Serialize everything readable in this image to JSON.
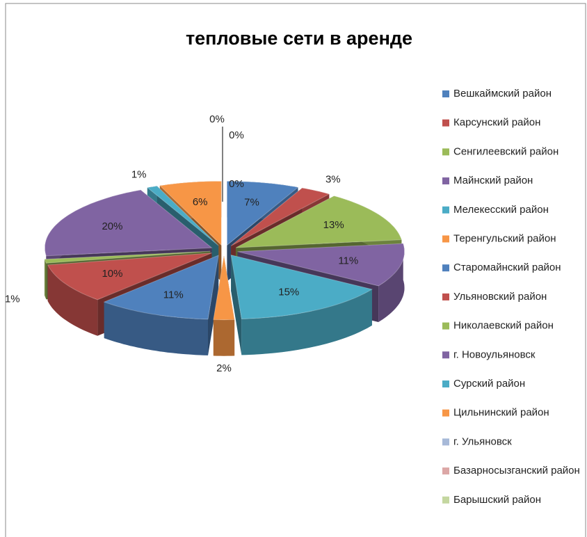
{
  "chart_data": {
    "type": "pie",
    "title": "тепловые сети в аренде",
    "categories": [
      "Вешкаймский район",
      "Карсунский район",
      "Сенгилеевский район",
      "Майнский район",
      "Мелекесский район",
      "Теренгульский район",
      "Старомайнский район",
      "Ульяновский район",
      "Николаевский район",
      "г. Новоульяновск",
      "Сурский район",
      "Цильнинский район",
      "г. Ульяновск",
      "Базарносызганский район",
      "Барышский район"
    ],
    "values": [
      7,
      3,
      13,
      11,
      15,
      2,
      11,
      10,
      1,
      20,
      1,
      6,
      0,
      0,
      0
    ],
    "value_labels": [
      "7%",
      "3%",
      "13%",
      "11%",
      "15%",
      "2%",
      "11%",
      "10%",
      "1%",
      "20%",
      "1%",
      "6%",
      "0%",
      "0%",
      "0%"
    ],
    "colors": [
      "#4f81bd",
      "#c0504d",
      "#9bbb59",
      "#8064a2",
      "#4bacc6",
      "#f79646",
      "#4f81bd",
      "#c0504d",
      "#9bbb59",
      "#8064a2",
      "#4bacc6",
      "#f79646",
      "#a7b9d8",
      "#dca7a6",
      "#c4d7a0"
    ],
    "legend": "right"
  }
}
